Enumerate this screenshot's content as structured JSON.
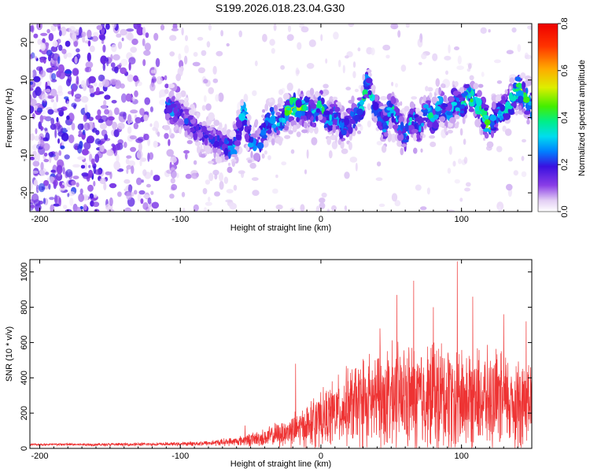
{
  "title": "S199.2026.018.23.04.G30",
  "chart_data": [
    {
      "type": "heatmap",
      "xlabel": "Height of straight line (km)",
      "ylabel": "Frequency (Hz)",
      "xlim": [
        -207,
        150
      ],
      "ylim": [
        -25,
        25
      ],
      "xticks": [
        -200,
        -100,
        0,
        100
      ],
      "xtick_labels": [
        "-200",
        "-100",
        "0",
        "100"
      ],
      "yticks": [
        -20,
        -10,
        0,
        10,
        20
      ],
      "ytick_labels": [
        "-20",
        "-10",
        "0",
        "10",
        "20"
      ],
      "colorbar": {
        "label": "Normalized spectral amplitude",
        "range": [
          0.0,
          0.8
        ],
        "ticks": [
          0.0,
          0.2,
          0.4,
          0.6,
          0.8
        ],
        "tick_labels": [
          "0.0",
          "0.2",
          "0.4",
          "0.6",
          "0.8"
        ]
      },
      "ridge": {
        "x": [
          -110,
          -100,
          -90,
          -80,
          -70,
          -63,
          -55,
          -50,
          -45,
          -40,
          -35,
          -30,
          -25,
          -20,
          -15,
          -10,
          -5,
          0,
          5,
          10,
          15,
          20,
          25,
          30,
          33,
          36,
          40,
          45,
          50,
          55,
          60,
          65,
          70,
          75,
          80,
          85,
          90,
          95,
          100,
          105,
          110,
          115,
          120,
          125,
          130,
          135,
          140,
          145,
          150
        ],
        "freq": [
          3,
          1,
          -3,
          -5,
          -7,
          -9,
          2,
          -7,
          -8,
          -3,
          0,
          -2,
          1,
          3,
          2,
          3,
          0,
          4,
          -1,
          1,
          -3,
          -1,
          0,
          4,
          10,
          5,
          2,
          -2,
          3,
          -1,
          -5,
          0,
          -3,
          2,
          -1,
          4,
          0,
          5,
          2,
          7,
          4,
          1,
          -3,
          1,
          2,
          4,
          8,
          5,
          3
        ],
        "amplitude": [
          0.3,
          0.25,
          0.2,
          0.2,
          0.25,
          0.3,
          0.35,
          0.3,
          0.28,
          0.3,
          0.35,
          0.3,
          0.4,
          0.55,
          0.5,
          0.35,
          0.3,
          0.45,
          0.3,
          0.32,
          0.3,
          0.3,
          0.35,
          0.4,
          0.4,
          0.35,
          0.3,
          0.35,
          0.4,
          0.3,
          0.3,
          0.35,
          0.3,
          0.35,
          0.4,
          0.35,
          0.3,
          0.35,
          0.4,
          0.45,
          0.45,
          0.5,
          0.45,
          0.35,
          0.35,
          0.45,
          0.55,
          0.45,
          0.45
        ]
      }
    },
    {
      "type": "line",
      "xlabel": "Height of straight line (km)",
      "ylabel": "SNR (10 * v/v)",
      "xlim": [
        -207,
        150
      ],
      "ylim": [
        0,
        1070
      ],
      "xticks": [
        -200,
        -100,
        0,
        100
      ],
      "xtick_labels": [
        "-200",
        "-100",
        "0",
        "100"
      ],
      "yticks": [
        0,
        200,
        400,
        600,
        800,
        1000
      ],
      "ytick_labels": [
        "0",
        "200",
        "400",
        "600",
        "800",
        "1000"
      ],
      "color": "#ee3333",
      "envelope": {
        "x": [
          -207,
          -150,
          -100,
          -80,
          -60,
          -40,
          -20,
          0,
          10,
          20,
          30,
          40,
          50,
          60,
          70,
          80,
          90,
          100,
          110,
          120,
          130,
          140,
          150
        ],
        "base": [
          22,
          22,
          25,
          30,
          40,
          60,
          100,
          160,
          200,
          240,
          260,
          270,
          280,
          280,
          285,
          290,
          290,
          285,
          280,
          275,
          270,
          265,
          260
        ],
        "spread": [
          8,
          10,
          12,
          18,
          30,
          60,
          110,
          180,
          220,
          260,
          300,
          330,
          350,
          360,
          360,
          370,
          380,
          360,
          340,
          320,
          320,
          310,
          300
        ]
      },
      "peaks": [
        {
          "x": -54,
          "y": 130
        },
        {
          "x": -18,
          "y": 480
        },
        {
          "x": 8,
          "y": 380
        },
        {
          "x": 42,
          "y": 680
        },
        {
          "x": 54,
          "y": 870
        },
        {
          "x": 66,
          "y": 950
        },
        {
          "x": 80,
          "y": 800
        },
        {
          "x": 97,
          "y": 1060
        },
        {
          "x": 108,
          "y": 860
        },
        {
          "x": 130,
          "y": 760
        },
        {
          "x": 146,
          "y": 720
        }
      ]
    }
  ]
}
